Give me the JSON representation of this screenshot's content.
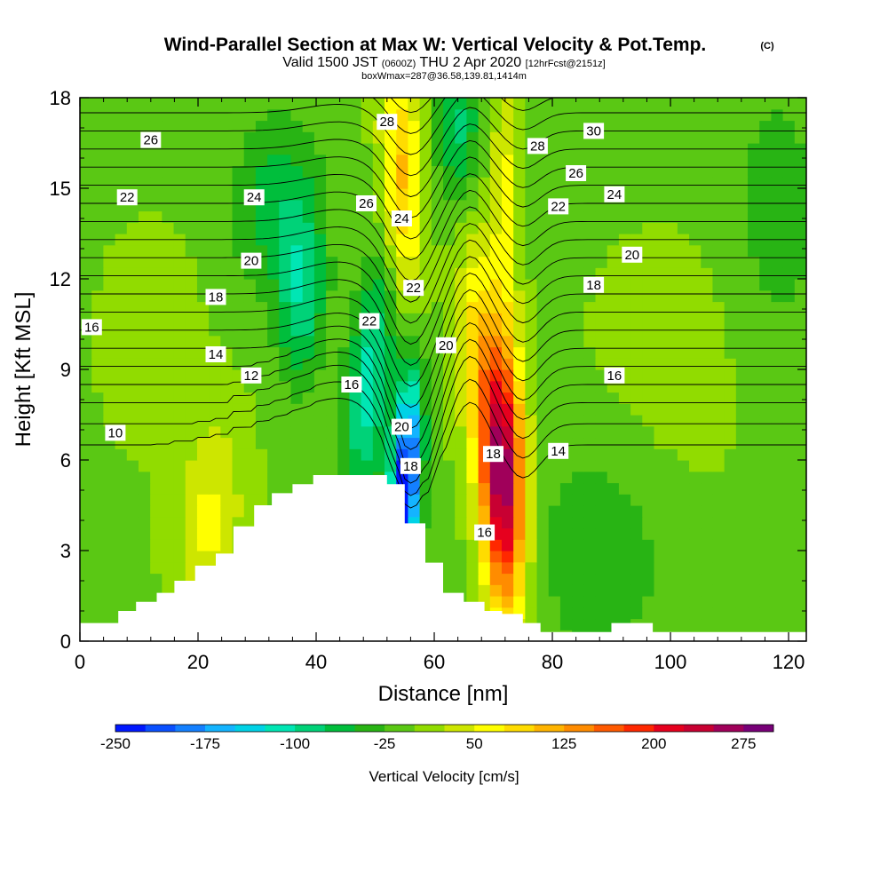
{
  "header": {
    "title": "Wind-Parallel Section at Max W: Vertical Velocity & Pot.Temp.",
    "title_mark": "(C)",
    "valid_prefix": "Valid 1500 JST",
    "valid_zulu": "(0600Z)",
    "valid_date": "THU 2 Apr 2020",
    "forecast": "[12hrFcst@2151z]",
    "box_info": "boxWmax=287@36.58,139.81,1414m"
  },
  "chart_data": {
    "type": "heatmap",
    "xlabel": "Distance [nm]",
    "ylabel": "Height [Kft MSL]",
    "xlim": [
      0,
      123
    ],
    "ylim": [
      0,
      18
    ],
    "x_ticks": [
      0,
      20,
      40,
      60,
      80,
      100,
      120
    ],
    "y_ticks": [
      0,
      3,
      6,
      9,
      12,
      15,
      18
    ],
    "colorbar": {
      "label": "Vertical Velocity [cm/s]",
      "min": -250,
      "max": 300,
      "step": 25,
      "tick_values": [
        -250,
        -175,
        -100,
        -25,
        50,
        125,
        200,
        275
      ],
      "colors": [
        "#0018ff",
        "#0a50ff",
        "#1480ff",
        "#14b4ff",
        "#00d2e6",
        "#00e6b4",
        "#00d278",
        "#00be3c",
        "#28b414",
        "#5ac814",
        "#91dc00",
        "#cde600",
        "#ffff00",
        "#ffdc00",
        "#ffb400",
        "#ff8c00",
        "#ff5a00",
        "#ff2800",
        "#e6001e",
        "#c80032",
        "#a0005a",
        "#780078"
      ]
    },
    "terrain": [
      {
        "x": 0,
        "y": 0.6
      },
      {
        "x": 6.5,
        "y": 1.0
      },
      {
        "x": 9.5,
        "y": 1.3
      },
      {
        "x": 13,
        "y": 1.6
      },
      {
        "x": 16,
        "y": 2.0
      },
      {
        "x": 19.5,
        "y": 2.5
      },
      {
        "x": 23,
        "y": 2.9
      },
      {
        "x": 26,
        "y": 3.8
      },
      {
        "x": 29.5,
        "y": 4.5
      },
      {
        "x": 32.5,
        "y": 4.9
      },
      {
        "x": 36,
        "y": 5.2
      },
      {
        "x": 39.5,
        "y": 5.5
      },
      {
        "x": 52,
        "y": 5.2
      },
      {
        "x": 55,
        "y": 3.9
      },
      {
        "x": 58.5,
        "y": 2.6
      },
      {
        "x": 61.5,
        "y": 1.6
      },
      {
        "x": 65,
        "y": 1.3
      },
      {
        "x": 68.5,
        "y": 1.0
      },
      {
        "x": 71.5,
        "y": 0.9
      },
      {
        "x": 75,
        "y": 0.6
      },
      {
        "x": 78,
        "y": 0.3
      },
      {
        "x": 90,
        "y": 0.6
      },
      {
        "x": 97,
        "y": 0.3
      },
      {
        "x": 123,
        "y": 0.3
      }
    ],
    "w_features": [
      {
        "x": 71.5,
        "y": 5.5,
        "sx": 2.6,
        "sy": 3.2,
        "rot": -0.14,
        "value": 287
      },
      {
        "x": 67.0,
        "y": 10.0,
        "sx": 2.6,
        "sy": 2.8,
        "rot": -0.1,
        "value": 70
      },
      {
        "x": 54.5,
        "y": 15.5,
        "sx": 2.4,
        "sy": 3.0,
        "rot": -0.2,
        "value": 110
      },
      {
        "x": 72.0,
        "y": 15.0,
        "sx": 1.7,
        "sy": 2.8,
        "rot": -0.05,
        "value": 60
      },
      {
        "x": 55.0,
        "y": 5.0,
        "sx": 1.8,
        "sy": 2.6,
        "rot": 0.3,
        "value": -250
      },
      {
        "x": 49.0,
        "y": 8.5,
        "sx": 2.6,
        "sy": 2.8,
        "rot": 0.42,
        "value": -110
      },
      {
        "x": 37.5,
        "y": 11.5,
        "sx": 2.8,
        "sy": 2.0,
        "rot": 0.1,
        "value": -90
      },
      {
        "x": 33.0,
        "y": 14.5,
        "sx": 5.0,
        "sy": 2.0,
        "rot": 0.3,
        "value": -60
      },
      {
        "x": 64.0,
        "y": 17.0,
        "sx": 2.5,
        "sy": 1.8,
        "rot": 0.0,
        "value": -80
      },
      {
        "x": 22.0,
        "y": 4.0,
        "sx": 4.0,
        "sy": 2.5,
        "rot": 0.3,
        "value": 60
      },
      {
        "x": 12.0,
        "y": 10.0,
        "sx": 6.0,
        "sy": 2.5,
        "rot": 0.0,
        "value": 20
      },
      {
        "x": 100.0,
        "y": 9.0,
        "sx": 10.0,
        "sy": 3.0,
        "rot": 0.0,
        "value": 20
      },
      {
        "x": 88.0,
        "y": 3.0,
        "sx": 9.0,
        "sy": 3.0,
        "rot": 0.0,
        "value": -35
      },
      {
        "x": 118.0,
        "y": 14.0,
        "sx": 6.0,
        "sy": 4.0,
        "rot": 0.0,
        "value": -30
      }
    ],
    "theta_contours": [
      {
        "value": 10,
        "y": 6.5
      },
      {
        "value": 11,
        "y": 7.2
      },
      {
        "value": 12,
        "y": 7.9
      },
      {
        "value": 13,
        "y": 8.5
      },
      {
        "value": 14,
        "y": 9.1
      },
      {
        "value": 15,
        "y": 9.7
      },
      {
        "value": 16,
        "y": 10.3
      },
      {
        "value": 17,
        "y": 10.9
      },
      {
        "value": 18,
        "y": 11.5
      },
      {
        "value": 19,
        "y": 12.1
      },
      {
        "value": 20,
        "y": 12.7
      },
      {
        "value": 21,
        "y": 13.3
      },
      {
        "value": 22,
        "y": 13.9
      },
      {
        "value": 23,
        "y": 14.5
      },
      {
        "value": 24,
        "y": 15.1
      },
      {
        "value": 25,
        "y": 15.7
      },
      {
        "value": 26,
        "y": 16.3
      },
      {
        "value": 27,
        "y": 16.9
      },
      {
        "value": 28,
        "y": 17.5
      },
      {
        "value": 29,
        "y": 18.1
      },
      {
        "value": 30,
        "y": 18.7
      }
    ],
    "contour_labels": [
      {
        "text": "26",
        "x": 12,
        "y": 16.6
      },
      {
        "text": "22",
        "x": 8,
        "y": 14.7
      },
      {
        "text": "24",
        "x": 29.5,
        "y": 14.7
      },
      {
        "text": "20",
        "x": 29,
        "y": 12.6
      },
      {
        "text": "18",
        "x": 23,
        "y": 11.4
      },
      {
        "text": "16",
        "x": 2,
        "y": 10.4
      },
      {
        "text": "14",
        "x": 23,
        "y": 9.5
      },
      {
        "text": "12",
        "x": 29,
        "y": 8.8
      },
      {
        "text": "10",
        "x": 6,
        "y": 6.9
      },
      {
        "text": "28",
        "x": 52,
        "y": 17.2
      },
      {
        "text": "26",
        "x": 48.5,
        "y": 14.5
      },
      {
        "text": "24",
        "x": 54.5,
        "y": 14.0
      },
      {
        "text": "22",
        "x": 56.5,
        "y": 11.7
      },
      {
        "text": "22",
        "x": 49,
        "y": 10.6
      },
      {
        "text": "20",
        "x": 62,
        "y": 9.8
      },
      {
        "text": "16",
        "x": 46,
        "y": 8.5
      },
      {
        "text": "20",
        "x": 54.5,
        "y": 7.1
      },
      {
        "text": "18",
        "x": 56,
        "y": 5.8
      },
      {
        "text": "18",
        "x": 70,
        "y": 6.2
      },
      {
        "text": "16",
        "x": 68.5,
        "y": 3.6
      },
      {
        "text": "30",
        "x": 87,
        "y": 16.9
      },
      {
        "text": "28",
        "x": 77.5,
        "y": 16.4
      },
      {
        "text": "26",
        "x": 84,
        "y": 15.5
      },
      {
        "text": "24",
        "x": 90.5,
        "y": 14.8
      },
      {
        "text": "22",
        "x": 81,
        "y": 14.4
      },
      {
        "text": "20",
        "x": 93.5,
        "y": 12.8
      },
      {
        "text": "18",
        "x": 87,
        "y": 11.8
      },
      {
        "text": "16",
        "x": 90.5,
        "y": 8.8
      },
      {
        "text": "14",
        "x": 81,
        "y": 6.3
      }
    ]
  }
}
